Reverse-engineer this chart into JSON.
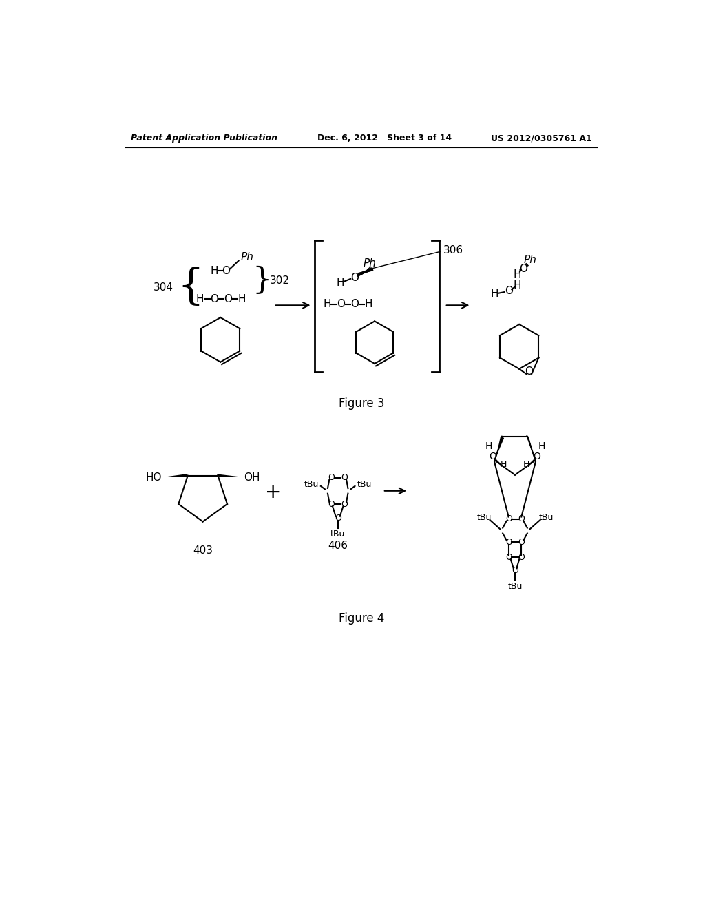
{
  "background_color": "#ffffff",
  "header_left": "Patent Application Publication",
  "header_center": "Dec. 6, 2012   Sheet 3 of 14",
  "header_right": "US 2012/0305761 A1",
  "figure3_caption": "Figure 3",
  "figure4_caption": "Figure 4",
  "label_302": "302",
  "label_304": "304",
  "label_306": "306",
  "label_403": "403",
  "label_406": "406"
}
